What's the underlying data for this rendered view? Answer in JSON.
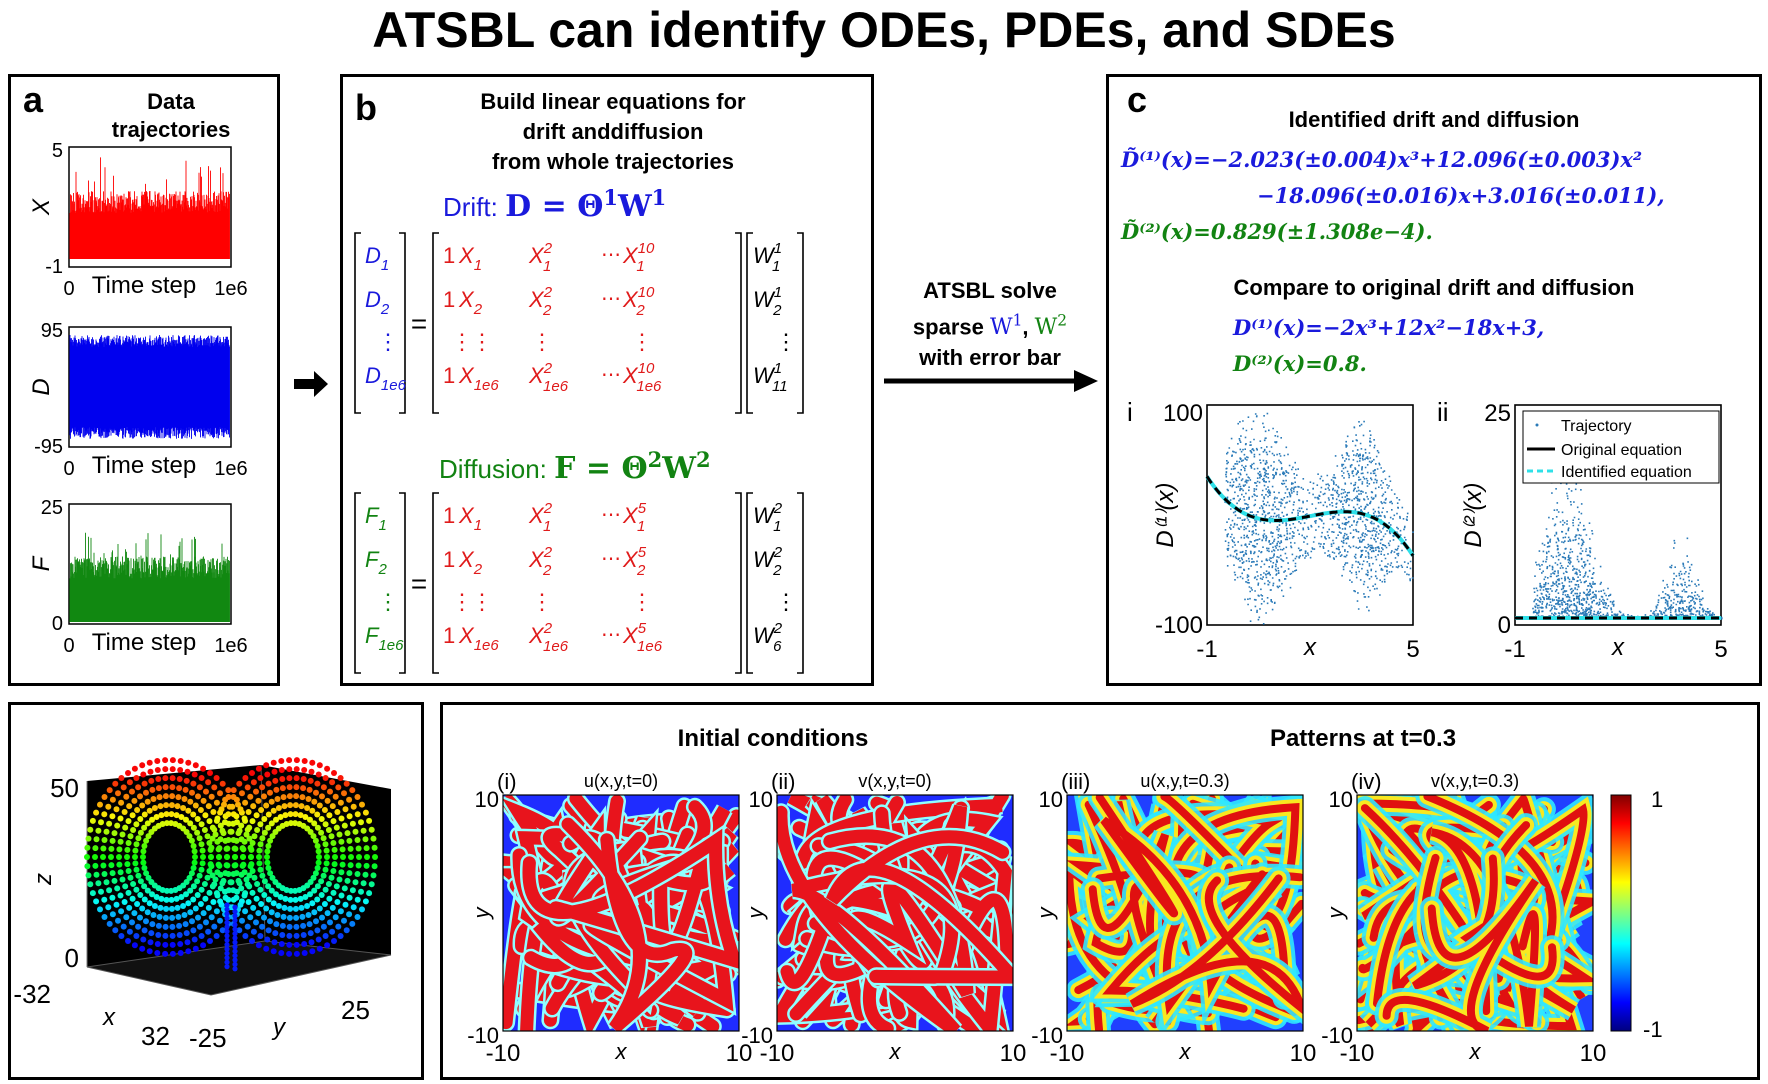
{
  "title": "ATSBL can identify ODEs, PDEs, and SDEs",
  "panel_a": {
    "letter": "a",
    "header_line1": "Data",
    "header_line2": "trajectories",
    "plots": [
      {
        "ylabel": "X",
        "ymax": "5",
        "ymin": "-1",
        "xmin": "0",
        "xmax": "1e6",
        "xlabel": "Time step",
        "color": "#ff0000"
      },
      {
        "ylabel": "D",
        "ymax": "95",
        "ymin": "-95",
        "xmin": "0",
        "xmax": "1e6",
        "xlabel": "Time step",
        "color": "#0000ee"
      },
      {
        "ylabel": "F",
        "ymax": "25",
        "ymin": "0",
        "xmin": "0",
        "xmax": "1e6",
        "xlabel": "Time step",
        "color": "#118811"
      }
    ]
  },
  "panel_b": {
    "letter": "b",
    "header_line1": "Build linear equations for",
    "header_line2": "drift anddiffusion",
    "header_line3": "from whole trajectories",
    "drift_label": "Drift:",
    "drift_eq_lhs": "D",
    "drift_eq_theta": "Θ",
    "drift_eq_w": "W",
    "drift_sup": "1",
    "diffusion_label": "Diffusion:",
    "diff_eq_lhs": "F",
    "diff_sup": "2",
    "equals": "=",
    "dots": "⋮",
    "hdots": "⋯",
    "one": "1",
    "drift_lhs": [
      "D",
      "D",
      "D"
    ],
    "drift_lhs_sub": [
      "1",
      "2",
      "1e6"
    ],
    "x_subs": [
      "1",
      "2",
      "1e6"
    ],
    "drift_pow_max": "10",
    "sq": "2",
    "drift_w_subs": [
      "1",
      "2",
      "11"
    ],
    "diff_lhs_sub": [
      "1",
      "2",
      "1e6"
    ],
    "diff_pow_max": "5",
    "diff_w_subs": [
      "1",
      "2",
      "6"
    ]
  },
  "arrow_label": {
    "line1": "ATSBL solve",
    "line2_prefix": "sparse",
    "w1": "W",
    "w1_sup": "1",
    "comma": ",",
    "w2": "W",
    "w2_sup": "2",
    "line3": "with error bar"
  },
  "panel_c": {
    "letter": "c",
    "header1": "Identified drift and diffusion",
    "id_drift_line1": "D̃⁽¹⁾(x)=−2.023(±0.004)x³+12.096(±0.003)x²",
    "id_drift_line2": "−18.096(±0.016)x+3.016(±0.011),",
    "id_diff_line": "D̃⁽²⁾(x)=0.829(±1.308e−4).",
    "header2": "Compare to original drift and diffusion",
    "orig_drift": "D⁽¹⁾(x)=−2x³+12x²−18x+3,",
    "orig_diff": "D⁽²⁾(x)=0.8.",
    "sub_i": {
      "roman": "i",
      "ylabel": "D⁽¹⁾(x)",
      "ymax": "100",
      "ymin": "-100",
      "xmin": "-1",
      "xmax": "5",
      "xlabel": "x"
    },
    "sub_ii": {
      "roman": "ii",
      "ylabel": "D⁽²⁾(x)",
      "ymax": "25",
      "ymin": "0",
      "xmin": "-1",
      "xmax": "5",
      "xlabel": "x",
      "legend": [
        "Trajectory",
        "Original equation",
        "Identified equation"
      ]
    },
    "colors": {
      "scatter": "#2a7ab8",
      "original": "#000000",
      "identified": "#2fe0e8"
    }
  },
  "panel_lorenz": {
    "zlabel": "z",
    "xlabel": "x",
    "ylabel": "y",
    "z_max": "50",
    "z_min": "0",
    "x_min": "-32",
    "x_max": "32",
    "y_min": "-25",
    "y_max": "25"
  },
  "panel_pde": {
    "header_initial": "Initial conditions",
    "header_patterns": "Patterns at t=0.3",
    "maps": [
      {
        "roman": "(i)",
        "title": "u(x,y,t=0)"
      },
      {
        "roman": "(ii)",
        "title": "v(x,y,t=0)"
      },
      {
        "roman": "(iii)",
        "title": "u(x,y,t=0.3)"
      },
      {
        "roman": "(iv)",
        "title": "v(x,y,t=0.3)"
      }
    ],
    "axis_min": "-10",
    "axis_max": "10",
    "xlabel": "x",
    "ylabel": "y",
    "colorbar_max": "1",
    "colorbar_min": "-1"
  }
}
